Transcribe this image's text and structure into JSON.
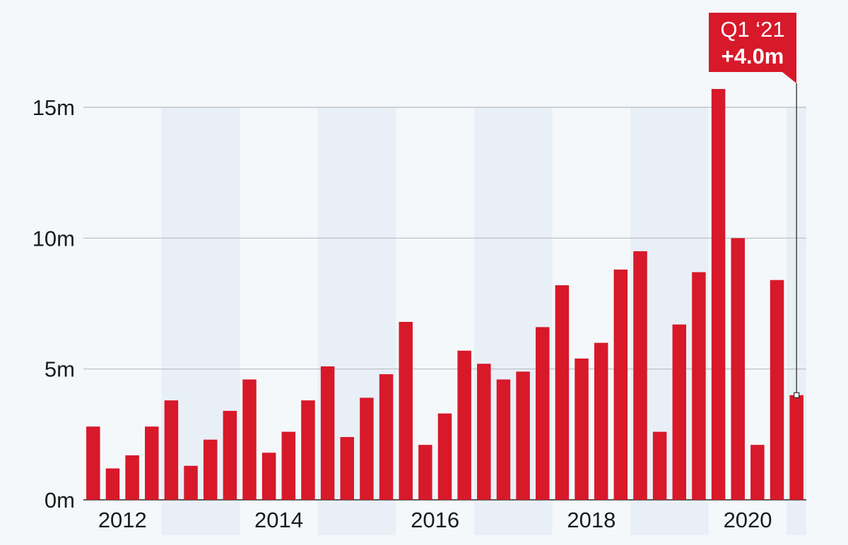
{
  "chart_data": {
    "type": "bar",
    "title": "",
    "xlabel": "",
    "ylabel": "",
    "ylim": [
      0,
      16
    ],
    "yticks": [
      {
        "value": 0,
        "label": "0m"
      },
      {
        "value": 5,
        "label": "5m"
      },
      {
        "value": 10,
        "label": "10m"
      },
      {
        "value": 15,
        "label": "15m"
      }
    ],
    "xtick_labels": [
      {
        "year": 2012,
        "label": "2012"
      },
      {
        "year": 2014,
        "label": "2014"
      },
      {
        "year": 2016,
        "label": "2016"
      },
      {
        "year": 2018,
        "label": "2018"
      },
      {
        "year": 2020,
        "label": "2020"
      }
    ],
    "start_year": 2012,
    "grid": true,
    "legend": "none",
    "bar_color": "#d7192a",
    "band_color": "#e9eff6",
    "categories": [
      "Q1 2012",
      "Q2 2012",
      "Q3 2012",
      "Q4 2012",
      "Q1 2013",
      "Q2 2013",
      "Q3 2013",
      "Q4 2013",
      "Q1 2014",
      "Q2 2014",
      "Q3 2014",
      "Q4 2014",
      "Q1 2015",
      "Q2 2015",
      "Q3 2015",
      "Q4 2015",
      "Q1 2016",
      "Q2 2016",
      "Q3 2016",
      "Q4 2016",
      "Q1 2017",
      "Q2 2017",
      "Q3 2017",
      "Q4 2017",
      "Q1 2018",
      "Q2 2018",
      "Q3 2018",
      "Q4 2018",
      "Q1 2019",
      "Q2 2019",
      "Q3 2019",
      "Q4 2019",
      "Q1 2020",
      "Q2 2020",
      "Q3 2020",
      "Q4 2020",
      "Q1 2021"
    ],
    "values": [
      2.8,
      1.2,
      1.7,
      2.8,
      3.8,
      1.3,
      2.3,
      3.4,
      4.6,
      1.8,
      2.6,
      3.8,
      5.1,
      2.4,
      3.9,
      4.8,
      6.8,
      2.1,
      3.3,
      5.7,
      5.2,
      4.6,
      4.9,
      6.6,
      8.2,
      5.4,
      6.0,
      8.8,
      9.5,
      2.6,
      6.7,
      8.7,
      15.7,
      10.0,
      2.1,
      8.4,
      4.0
    ],
    "annotation": {
      "index": 36,
      "line1": "Q1 ‘21",
      "line2": "+4.0m",
      "color": "#d7192a"
    }
  }
}
